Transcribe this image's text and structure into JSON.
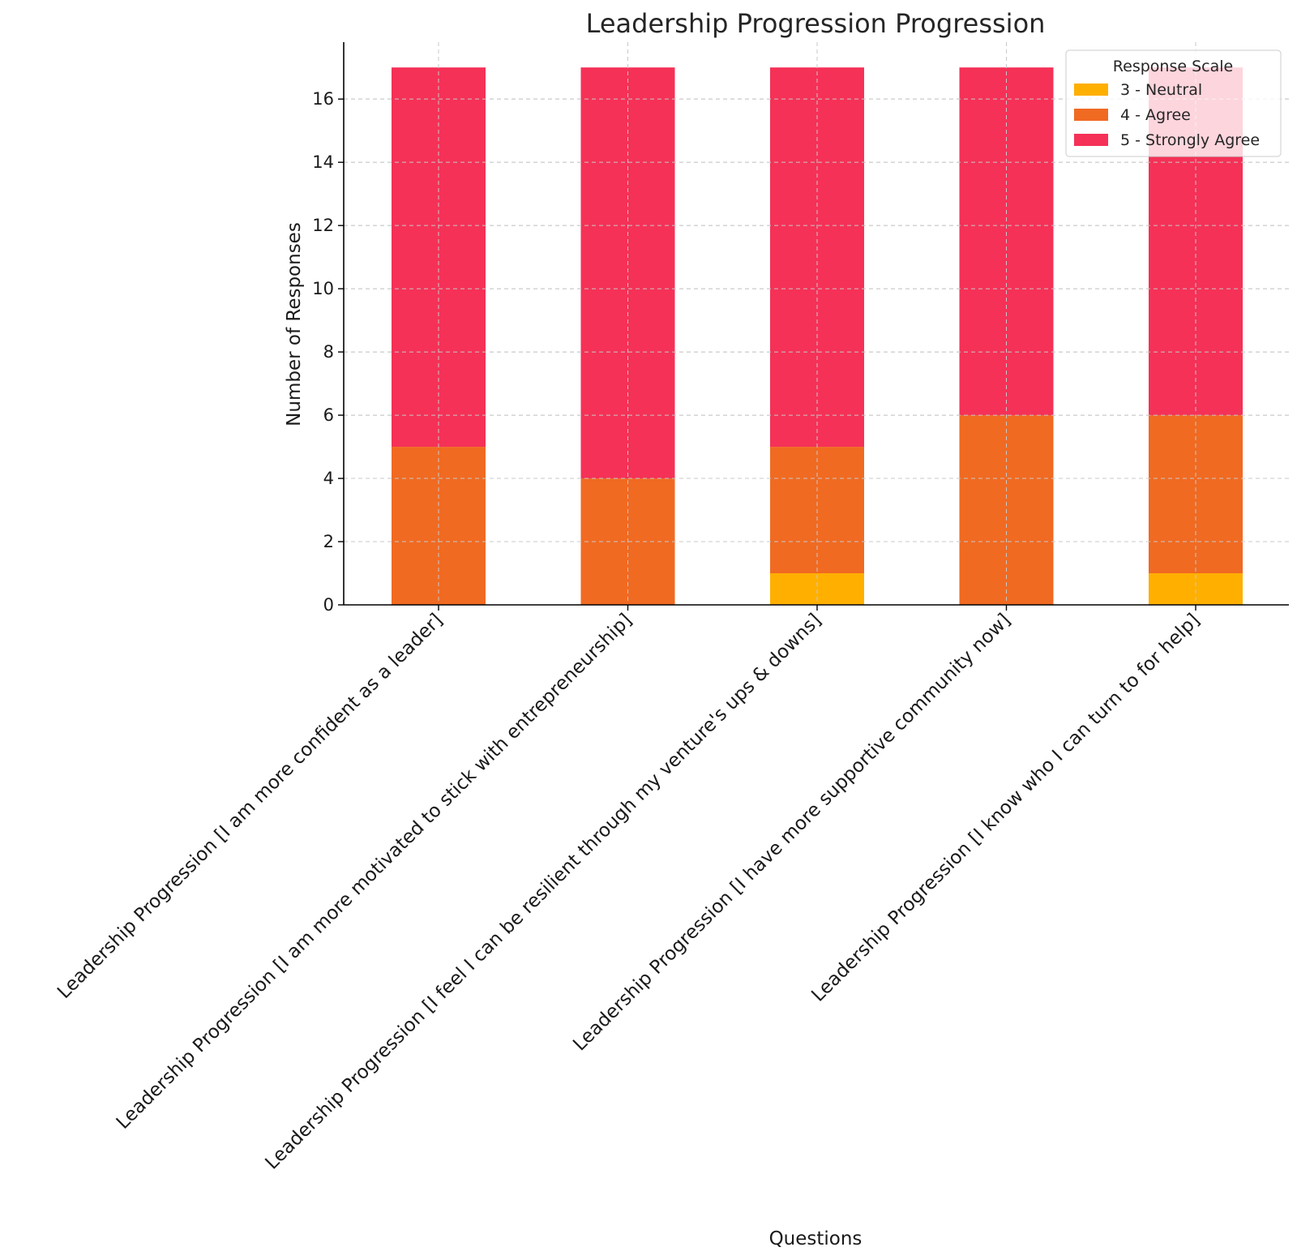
{
  "chart_data": {
    "type": "bar",
    "stacked": true,
    "title": "Leadership Progression Progression",
    "xlabel": "Questions",
    "ylabel": "Number of Responses",
    "ylim": [
      0,
      17.8
    ],
    "yticks": [
      0,
      2,
      4,
      6,
      8,
      10,
      12,
      14,
      16
    ],
    "grid": true,
    "legend": {
      "title": "Response Scale",
      "placement": "top-right"
    },
    "categories": [
      "Leadership Progression [I am more confident as a leader]",
      "Leadership Progression [I am more motivated to stick with entrepreneurship]",
      "Leadership Progression [I feel I can be resilient through my venture's ups & downs]",
      "Leadership Progression [I have more supportive community now]",
      "Leadership Progression [I know who I can turn to for help]"
    ],
    "series": [
      {
        "name": "3 - Neutral",
        "color": "#FFAF00",
        "values": [
          0,
          0,
          1,
          0,
          1
        ]
      },
      {
        "name": "4 - Agree",
        "color": "#F06A22",
        "values": [
          5,
          4,
          4,
          6,
          5
        ]
      },
      {
        "name": "5 - Strongly Agree",
        "color": "#F53157",
        "values": [
          12,
          13,
          12,
          11,
          11
        ]
      }
    ]
  }
}
